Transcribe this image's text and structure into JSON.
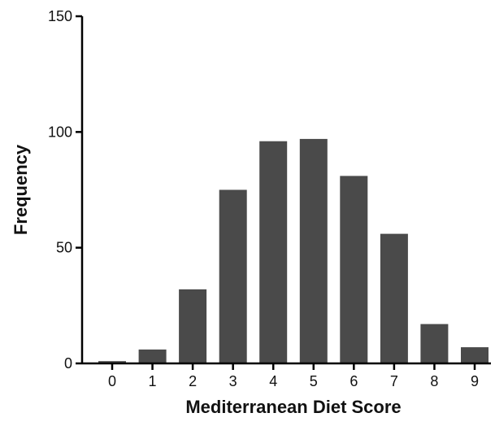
{
  "chart_data": {
    "type": "bar",
    "title": "",
    "xlabel": "Mediterranean Diet Score",
    "ylabel": "Frequency",
    "categories": [
      "0",
      "1",
      "2",
      "3",
      "4",
      "5",
      "6",
      "7",
      "8",
      "9"
    ],
    "values": [
      1,
      6,
      32,
      75,
      96,
      97,
      81,
      56,
      17,
      7
    ],
    "ylim": [
      0,
      150
    ],
    "yticks": [
      "0",
      "50",
      "100",
      "150"
    ],
    "grid": false,
    "legend": "none",
    "bar_color": "#4a4a4a",
    "axis_color": "#000000"
  }
}
